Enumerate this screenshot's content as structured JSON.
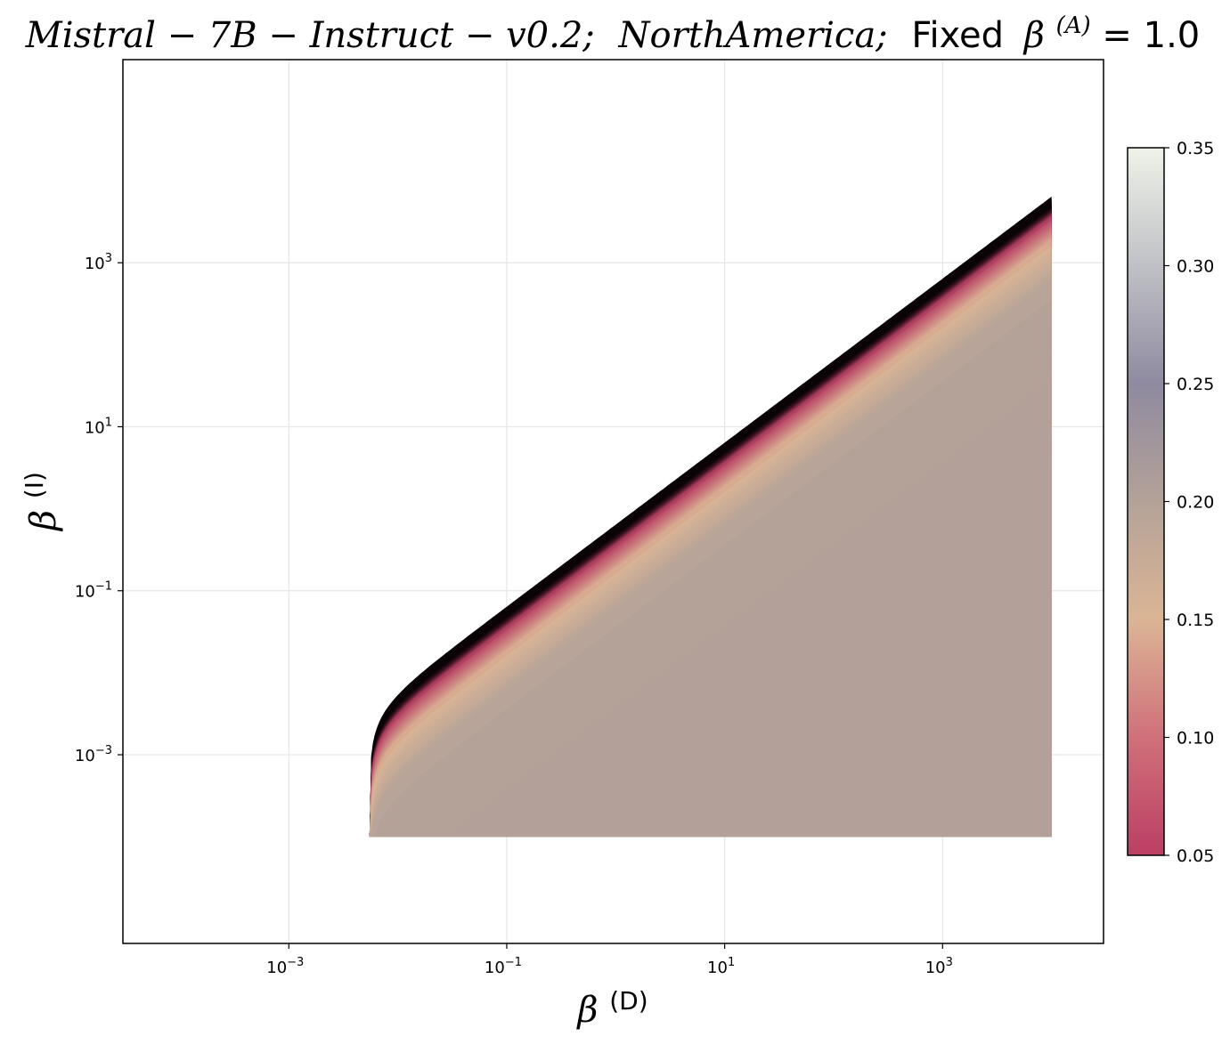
{
  "chart_data": {
    "type": "heatmap",
    "title": {
      "model": "Mistral − 7B − Instruct − v0.2;",
      "region": "NorthAmerica;",
      "fixed_prefix": "Fixed",
      "fixed_symbol": "β",
      "fixed_superscript": "(A)",
      "fixed_suffix": " = 1.0"
    },
    "xlabel": {
      "symbol": "β",
      "superscript": "(D)"
    },
    "ylabel": {
      "symbol": "β",
      "superscript": "(I)"
    },
    "x_scale": "log",
    "y_scale": "log",
    "xlim": [
      3e-05,
      30000
    ],
    "ylim": [
      5e-06,
      300000
    ],
    "x_ticks": [
      {
        "value": 0.001,
        "base": "10",
        "exp": "−3"
      },
      {
        "value": 0.1,
        "base": "10",
        "exp": "−1"
      },
      {
        "value": 10,
        "base": "10",
        "exp": "1"
      },
      {
        "value": 1000,
        "base": "10",
        "exp": "3"
      }
    ],
    "y_ticks": [
      {
        "value": 0.001,
        "base": "10",
        "exp": "−3"
      },
      {
        "value": 0.1,
        "base": "10",
        "exp": "−1"
      },
      {
        "value": 10,
        "base": "10",
        "exp": "1"
      },
      {
        "value": 1000,
        "base": "10",
        "exp": "3"
      }
    ],
    "grid": true,
    "region": {
      "x_min": 0.0055,
      "x_max": 10000,
      "y_min": 0.0001,
      "boundary_description": "upper boundary beta_I ≈ 0.64 * sqrt(beta_D^2 - 0.0055^2)",
      "bands": [
        {
          "offset_decades": 0.0,
          "value": 0.0,
          "color": "#0a0406"
        },
        {
          "offset_decades": 0.12,
          "value": 0.0,
          "color": "#0a0406"
        },
        {
          "offset_decades": 0.17,
          "value": 0.05,
          "color": "#3c1020"
        },
        {
          "offset_decades": 0.25,
          "value": 0.07,
          "color": "#b94466"
        },
        {
          "offset_decades": 0.55,
          "value": 0.15,
          "color": "#dbb595"
        },
        {
          "offset_decades": 1.05,
          "value": 0.19,
          "color": "#b4a298"
        },
        {
          "offset_decades": 3.0,
          "value": 0.19,
          "color": "#b3a199"
        }
      ]
    },
    "colorbar": {
      "min": 0.05,
      "max": 0.35,
      "ticks": [
        "0.05",
        "0.10",
        "0.15",
        "0.20",
        "0.25",
        "0.30",
        "0.35"
      ],
      "colormap_stops": [
        {
          "value": 0.05,
          "color": "#bb3f64"
        },
        {
          "value": 0.1,
          "color": "#d0707a"
        },
        {
          "value": 0.15,
          "color": "#dbb595"
        },
        {
          "value": 0.2,
          "color": "#b4a298"
        },
        {
          "value": 0.25,
          "color": "#8f8aa0"
        },
        {
          "value": 0.3,
          "color": "#c0c1c6"
        },
        {
          "value": 0.35,
          "color": "#eef2e8"
        }
      ]
    }
  }
}
